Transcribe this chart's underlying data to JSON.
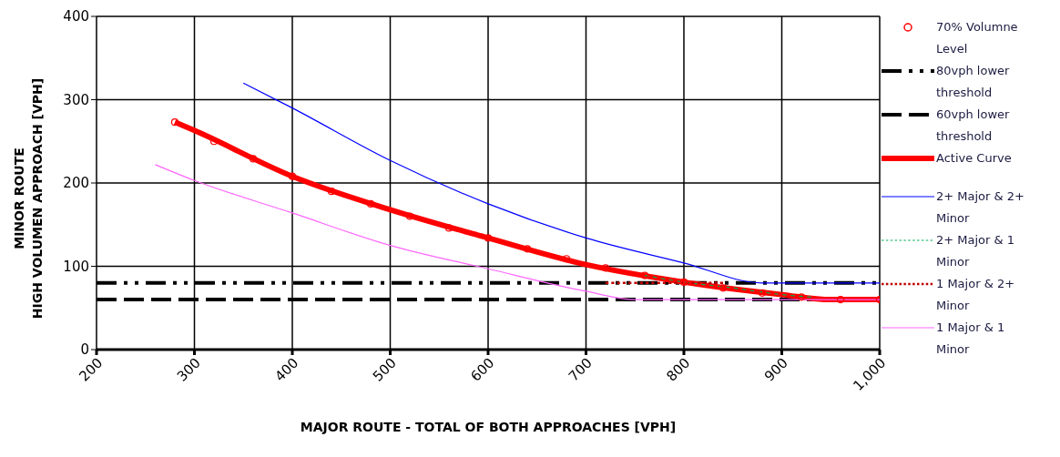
{
  "chart_data": {
    "type": "line",
    "xlabel": "MAJOR ROUTE - TOTAL OF BOTH APPROACHES [VPH]",
    "ylabel": "MINOR  ROUTE\nHIGH  VOLUMEN APPROACH [VPH]",
    "xlim": [
      200,
      1000
    ],
    "xticks": [
      200,
      300,
      400,
      500,
      600,
      700,
      800,
      900,
      {
        "value": 1000,
        "label": "1,000"
      }
    ],
    "ylim": [
      0,
      400
    ],
    "yticks": [
      0,
      100,
      200,
      300,
      400
    ],
    "grid": true,
    "legend": "right",
    "series": [
      {
        "name": "70% Volumne Level",
        "type": "scatter",
        "marker": "circle",
        "color": "#ff0000",
        "x": [
          280,
          320,
          360,
          400,
          440,
          480,
          520,
          560,
          600,
          640,
          680,
          720,
          760,
          800,
          840,
          880,
          920,
          960,
          1000
        ],
        "values": [
          273,
          250,
          229,
          208,
          190,
          175,
          160,
          146,
          134,
          121,
          109,
          98,
          89,
          81,
          74,
          68,
          63,
          60,
          60
        ]
      },
      {
        "name": "80vph lower threshold",
        "color": "#000000",
        "line_style": "dashed",
        "x": [
          200,
          1000
        ],
        "values": [
          80,
          80
        ]
      },
      {
        "name": "60vph lower threshold",
        "color": "#000000",
        "line_style": "dashed",
        "x": [
          200,
          1000
        ],
        "values": [
          60,
          60
        ]
      },
      {
        "name": "Active Curve",
        "color": "#ff0000",
        "line_style": "solid",
        "x": [
          280,
          300,
          400,
          500,
          600,
          700,
          800,
          900,
          950,
          1000
        ],
        "values": [
          273,
          263,
          208,
          168,
          134,
          102,
          81,
          66,
          60,
          60
        ]
      },
      {
        "name": "2+ Major & 2+ Minor",
        "color": "#0000ff",
        "line_style": "solid",
        "x": [
          350,
          400,
          500,
          600,
          700,
          800,
          880,
          1000
        ],
        "values": [
          320,
          290,
          227,
          175,
          134,
          104,
          80,
          80
        ]
      },
      {
        "name": "2+ Major & 1 Minor",
        "color": "#00b050",
        "line_style": "dashed",
        "x": [
          760,
          800,
          850,
          900,
          930
        ],
        "values": [
          89,
          81,
          74,
          66,
          63
        ]
      },
      {
        "name": "1 Major & 2+ Minor",
        "color": "#c00000",
        "line_style": "dashed",
        "x": [
          720,
          780,
          840
        ],
        "values": [
          80,
          80,
          80
        ]
      },
      {
        "name": "1 Major & 1 Minor",
        "color": "#ff66ff",
        "line_style": "solid",
        "x": [
          260,
          300,
          400,
          500,
          600,
          700,
          750,
          1000
        ],
        "values": [
          222,
          203,
          164,
          125,
          97,
          70,
          60,
          60
        ]
      }
    ]
  }
}
